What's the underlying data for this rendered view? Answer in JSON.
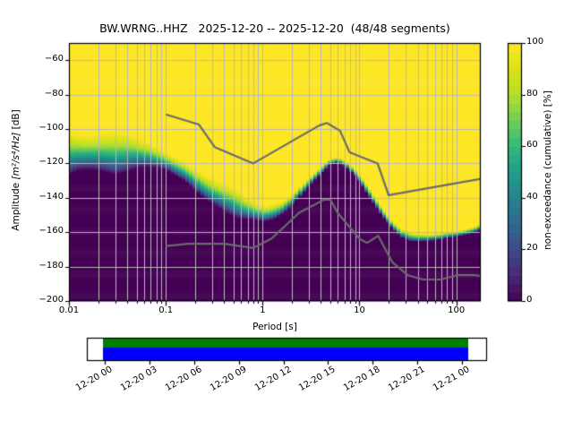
{
  "title": "BW.WRNG..HHZ   2025-12-20 -- 2025-12-20  (48/48 segments)",
  "y_axis": {
    "label_prefix": "Amplitude ",
    "label_math": "[m²/s⁴/Hz]",
    "label_suffix": " [dB]",
    "min": -200,
    "max": -50,
    "tick_values": [
      -60,
      -80,
      -100,
      -120,
      -140,
      -160,
      -180,
      -200
    ],
    "tick_labels": [
      "−60",
      "−80",
      "−100",
      "−120",
      "−140",
      "−160",
      "−180",
      "−200"
    ]
  },
  "x_axis": {
    "label": "Period [s]",
    "min": 0.01,
    "max": 179,
    "tick_values": [
      0.01,
      0.1,
      1,
      10,
      100
    ],
    "tick_labels": [
      "0.01",
      "0.1",
      "1",
      "10",
      "100"
    ]
  },
  "colorbar": {
    "label": "non-exceedance (cumulative) [%]",
    "min": 0,
    "max": 100,
    "steps": 30,
    "tick_values": [
      0,
      20,
      40,
      60,
      80,
      100
    ],
    "tick_labels": [
      "0",
      "20",
      "40",
      "60",
      "80",
      "100"
    ],
    "colormap": {
      "name": "viridis",
      "stops": [
        [
          0,
          "#440154"
        ],
        [
          0.1,
          "#482878"
        ],
        [
          0.2,
          "#3e4989"
        ],
        [
          0.3,
          "#31688e"
        ],
        [
          0.4,
          "#26828e"
        ],
        [
          0.5,
          "#1f9e89"
        ],
        [
          0.6,
          "#35b779"
        ],
        [
          0.7,
          "#6ece58"
        ],
        [
          0.8,
          "#b5de2b"
        ],
        [
          0.9,
          "#d8e219"
        ],
        [
          1,
          "#fde725"
        ]
      ]
    }
  },
  "chart_data": {
    "type": "heatmap",
    "description": "PPSD cumulative non-exceedance distribution vs period; yellow = 100 % of segments below amplitude, dark = 0 %",
    "xlabel": "Period [s]",
    "xscale": "log",
    "xlim": [
      0.01,
      179
    ],
    "ylabel": "Amplitude [m2/s4/Hz] [dB]",
    "ylim": [
      -200,
      -50
    ],
    "grid": true,
    "periods": [
      0.01,
      0.012,
      0.015,
      0.018,
      0.022,
      0.028,
      0.034,
      0.042,
      0.052,
      0.064,
      0.08,
      0.1,
      0.125,
      0.155,
      0.19,
      0.24,
      0.29,
      0.36,
      0.45,
      0.56,
      0.69,
      0.86,
      1.05,
      1.3,
      1.6,
      2.0,
      2.5,
      3.1,
      3.9,
      4.8,
      6.0,
      7.4,
      9.2,
      11.4,
      14.2,
      17.6,
      22,
      27,
      34,
      42,
      53,
      66,
      82,
      100,
      125,
      155,
      179
    ],
    "upper_db": [
      -100,
      -102,
      -103,
      -102.5,
      -101.5,
      -100.5,
      -101,
      -102,
      -104.5,
      -107,
      -110.5,
      -113.5,
      -116,
      -118.5,
      -122,
      -125.5,
      -128,
      -130,
      -131.5,
      -135,
      -139.5,
      -143,
      -144.5,
      -143.5,
      -142,
      -138,
      -132.5,
      -127.5,
      -122,
      -117.5,
      -116,
      -118.5,
      -124,
      -130.5,
      -138.5,
      -146.5,
      -153.5,
      -157.5,
      -160,
      -160.5,
      -161,
      -160.5,
      -159.5,
      -159,
      -158,
      -156.5,
      -155
    ],
    "lower_db": [
      -127,
      -124,
      -123.5,
      -123.5,
      -124.5,
      -126.5,
      -126,
      -124.5,
      -122.5,
      -122,
      -122.5,
      -123.5,
      -127,
      -130,
      -134,
      -139.5,
      -143,
      -146,
      -149.5,
      -152,
      -152.5,
      -153,
      -154,
      -152.5,
      -149.5,
      -145,
      -138.5,
      -132.5,
      -127,
      -121.5,
      -119.5,
      -122.5,
      -128,
      -136,
      -144,
      -151.5,
      -158,
      -163,
      -165.5,
      -165.5,
      -165,
      -164.5,
      -163.5,
      -162.5,
      -161.5,
      -160,
      -158.5
    ],
    "noise_models": {
      "high": {
        "name": "NHNM",
        "periods": [
          0.1,
          0.22,
          0.32,
          0.8,
          3.8,
          4.6,
          6.3,
          7.9,
          15.4,
          20,
          354.8
        ],
        "db": [
          -91.5,
          -97.4,
          -110.5,
          -120,
          -98.1,
          -96.5,
          -101,
          -113.5,
          -120,
          -138.5,
          -126
        ]
      },
      "low": {
        "name": "NLNM",
        "periods": [
          0.1,
          0.17,
          0.4,
          0.8,
          1.24,
          2.4,
          4.3,
          5,
          6,
          10,
          12,
          15.6,
          21.9,
          31.6,
          45,
          70,
          101,
          154,
          328
        ],
        "db": [
          -168,
          -166.7,
          -166.7,
          -169.2,
          -163.7,
          -148.6,
          -141.1,
          -141.1,
          -149,
          -163.8,
          -166.2,
          -162.1,
          -177.5,
          -185,
          -187.5,
          -187.5,
          -185,
          -185,
          -187.5
        ]
      }
    },
    "colors": {
      "max_color": "#fde725",
      "min_color": "#440154",
      "grid_color": "#b9b9b9",
      "noise_model_color": "#6b6b6b",
      "spine_color": "#000000"
    }
  },
  "coverage": {
    "time_tick_labels": [
      "12-20 00",
      "12-20 03",
      "12-20 06",
      "12-20 09",
      "12-20 12",
      "12-20 15",
      "12-20 18",
      "12-20 21",
      "12-21 00"
    ],
    "kept_color": "#008000",
    "data_color": "#0000ff",
    "box_color": "#ffffff"
  }
}
